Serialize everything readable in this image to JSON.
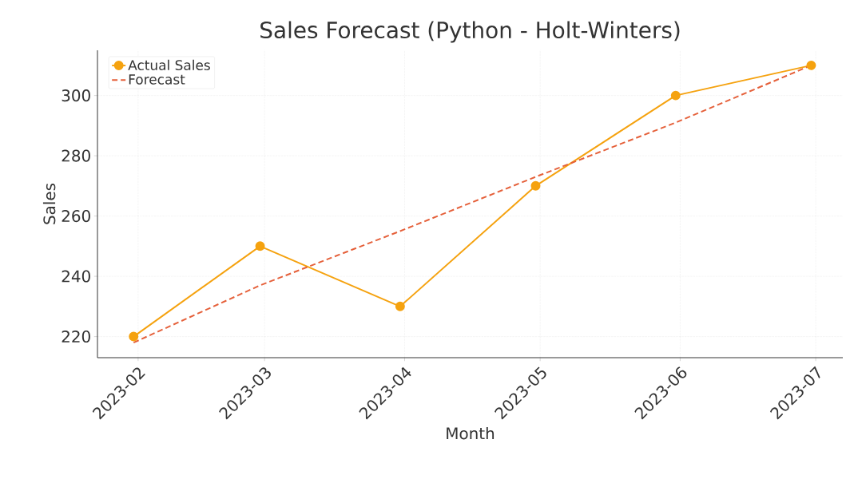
{
  "chart_data": {
    "type": "line",
    "title": "Sales Forecast (Python - Holt-Winters)",
    "xlabel": "Month",
    "ylabel": "Sales",
    "xlim": [
      "2023-01-23",
      "2023-07-07"
    ],
    "xticks": [
      "2023-02",
      "2023-03",
      "2023-04",
      "2023-05",
      "2023-06",
      "2023-07"
    ],
    "ylim": [
      213,
      315
    ],
    "yticks": [
      220,
      240,
      260,
      280,
      300
    ],
    "grid": true,
    "legend": "top left",
    "series": [
      {
        "name": "Actual Sales",
        "color": "#f5a20f",
        "marker": "circle",
        "line_style": "solid",
        "x": [
          "2023-01-31",
          "2023-02-28",
          "2023-03-31",
          "2023-04-30",
          "2023-05-31",
          "2023-06-30"
        ],
        "values": [
          220,
          250,
          230,
          270,
          300,
          310
        ]
      },
      {
        "name": "Forecast",
        "color": "#e5603a",
        "marker": "none",
        "line_style": "dashed",
        "x": [
          "2023-01-31",
          "2023-02-28",
          "2023-03-31",
          "2023-04-30",
          "2023-05-31",
          "2023-06-30"
        ],
        "values": [
          218,
          237,
          255,
          273,
          291,
          310
        ]
      }
    ]
  }
}
